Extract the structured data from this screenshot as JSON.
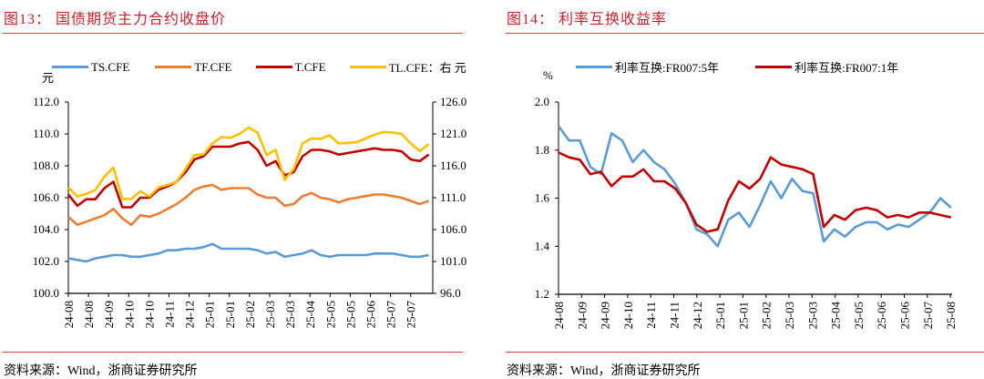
{
  "left": {
    "title": "图13：  国债期货主力合约收盘价",
    "source": "资料来源：Wind，浙商证券研究所",
    "unit_left": "元",
    "legend": [
      "TS.CFE",
      "TF.CFE",
      "T.CFE",
      "TL.CFE：右 元"
    ]
  },
  "right": {
    "title": "图14：  利率互换收益率",
    "source": "资料来源：Wind，浙商证券研究所",
    "unit_left": "%",
    "legend": [
      "利率互换:FR007:5年",
      "利率互换:FR007:1年"
    ]
  },
  "chart_data": [
    {
      "type": "line",
      "title": "国债期货主力合约收盘价",
      "ylabel": "元",
      "y2label": "元",
      "ylim": [
        100,
        112
      ],
      "yticks": [
        "100.0",
        "102.0",
        "104.0",
        "106.0",
        "108.0",
        "110.0",
        "112.0"
      ],
      "y2lim": [
        96,
        126
      ],
      "y2ticks": [
        "96.0",
        "101.0",
        "106.0",
        "111.0",
        "116.0",
        "121.0",
        "126.0"
      ],
      "xlim": [
        "2024-08-01",
        "2025-07-31"
      ],
      "xticks": [
        "24-08",
        "24-08",
        "24-09",
        "24-10",
        "24-10",
        "24-11",
        "24-12",
        "25-01",
        "25-01",
        "25-02",
        "25-03",
        "25-03",
        "25-04",
        "25-05",
        "25-05",
        "25-06",
        "25-07",
        "25-07"
      ],
      "legend_position": "top",
      "grid": false,
      "x": [
        "2024-08-01",
        "2024-08-10",
        "2024-08-19",
        "2024-08-28",
        "2024-09-06",
        "2024-09-15",
        "2024-09-24",
        "2024-10-03",
        "2024-10-12",
        "2024-10-21",
        "2024-10-30",
        "2024-11-08",
        "2024-11-17",
        "2024-11-26",
        "2024-12-05",
        "2024-12-14",
        "2024-12-23",
        "2025-01-01",
        "2025-01-10",
        "2025-01-19",
        "2025-01-28",
        "2025-02-06",
        "2025-02-15",
        "2025-02-24",
        "2025-03-05",
        "2025-03-14",
        "2025-03-23",
        "2025-04-01",
        "2025-04-10",
        "2025-04-19",
        "2025-04-28",
        "2025-05-07",
        "2025-05-16",
        "2025-05-25",
        "2025-06-03",
        "2025-06-12",
        "2025-06-21",
        "2025-06-30",
        "2025-07-09",
        "2025-07-18",
        "2025-07-27"
      ],
      "series": [
        {
          "name": "TS.CFE",
          "axis": "left",
          "color": "#5B9BD5",
          "values": [
            102.2,
            102.1,
            102.0,
            102.2,
            102.3,
            102.4,
            102.4,
            102.3,
            102.3,
            102.4,
            102.5,
            102.7,
            102.7,
            102.8,
            102.8,
            102.9,
            103.1,
            102.8,
            102.8,
            102.8,
            102.8,
            102.7,
            102.5,
            102.6,
            102.3,
            102.4,
            102.5,
            102.7,
            102.4,
            102.3,
            102.4,
            102.4,
            102.4,
            102.4,
            102.5,
            102.5,
            102.5,
            102.4,
            102.3,
            102.3,
            102.4
          ]
        },
        {
          "name": "TF.CFE",
          "axis": "left",
          "color": "#ED7D31",
          "values": [
            104.8,
            104.3,
            104.5,
            104.7,
            104.9,
            105.3,
            104.7,
            104.3,
            104.9,
            104.8,
            105.0,
            105.3,
            105.6,
            106.0,
            106.5,
            106.7,
            106.8,
            106.5,
            106.6,
            106.6,
            106.6,
            106.2,
            106.0,
            106.0,
            105.5,
            105.6,
            106.1,
            106.3,
            106.0,
            105.9,
            105.7,
            105.9,
            106.0,
            106.1,
            106.2,
            106.2,
            106.1,
            106.0,
            105.8,
            105.6,
            105.8
          ]
        },
        {
          "name": "T.CFE",
          "axis": "left",
          "color": "#C00000",
          "values": [
            106.2,
            105.5,
            105.9,
            105.9,
            106.6,
            107.0,
            105.4,
            105.4,
            106.0,
            106.0,
            106.5,
            106.7,
            107.0,
            107.6,
            108.4,
            108.6,
            109.2,
            109.2,
            109.2,
            109.4,
            109.5,
            109.0,
            108.0,
            108.3,
            107.4,
            107.6,
            108.6,
            109.0,
            109.0,
            108.9,
            108.7,
            108.8,
            108.9,
            109.0,
            109.1,
            109.0,
            109.0,
            108.9,
            108.4,
            108.3,
            108.7
          ]
        },
        {
          "name": "TL.CFE",
          "axis": "right",
          "color": "#FFC000",
          "values": [
            112.6,
            111.2,
            111.6,
            112.2,
            114.3,
            115.7,
            110.8,
            110.8,
            112.0,
            111.2,
            112.6,
            113.0,
            113.5,
            115.5,
            117.7,
            117.8,
            119.5,
            120.5,
            120.4,
            121.0,
            122.0,
            121.2,
            117.7,
            118.5,
            113.8,
            115.5,
            119.5,
            120.3,
            120.2,
            120.8,
            119.5,
            119.6,
            119.7,
            120.3,
            120.9,
            121.3,
            121.2,
            121.0,
            119.5,
            118.3,
            119.4
          ]
        }
      ]
    },
    {
      "type": "line",
      "title": "利率互换收益率",
      "ylabel": "%",
      "ylim": [
        1.2,
        2.0
      ],
      "yticks": [
        "1.2",
        "1.4",
        "1.6",
        "1.8",
        "2.0"
      ],
      "xlim": [
        "2024-08-01",
        "2025-08-07"
      ],
      "xticks": [
        "24-08",
        "24-09",
        "24-09",
        "24-10",
        "24-11",
        "24-11",
        "24-12",
        "25-01",
        "25-01",
        "25-02",
        "25-03",
        "25-03",
        "25-04",
        "25-05",
        "25-06",
        "25-06",
        "25-07",
        "25-08"
      ],
      "legend_position": "top",
      "grid": false,
      "x": [
        "2024-08-01",
        "2024-08-11",
        "2024-08-21",
        "2024-08-31",
        "2024-09-10",
        "2024-09-20",
        "2024-09-30",
        "2024-10-10",
        "2024-10-20",
        "2024-10-30",
        "2024-11-09",
        "2024-11-19",
        "2024-11-29",
        "2024-12-09",
        "2024-12-19",
        "2024-12-29",
        "2025-01-08",
        "2025-01-18",
        "2025-01-28",
        "2025-02-07",
        "2025-02-17",
        "2025-02-27",
        "2025-03-09",
        "2025-03-19",
        "2025-03-29",
        "2025-04-08",
        "2025-04-18",
        "2025-04-28",
        "2025-05-08",
        "2025-05-18",
        "2025-05-28",
        "2025-06-07",
        "2025-06-17",
        "2025-06-27",
        "2025-07-07",
        "2025-07-17",
        "2025-07-27",
        "2025-08-06"
      ],
      "series": [
        {
          "name": "利率互换:FR007:5年",
          "color": "#5B9BD5",
          "values": [
            1.9,
            1.84,
            1.84,
            1.73,
            1.7,
            1.87,
            1.84,
            1.75,
            1.8,
            1.75,
            1.72,
            1.66,
            1.58,
            1.47,
            1.45,
            1.4,
            1.51,
            1.54,
            1.48,
            1.57,
            1.67,
            1.6,
            1.68,
            1.63,
            1.62,
            1.42,
            1.47,
            1.44,
            1.48,
            1.5,
            1.5,
            1.47,
            1.49,
            1.48,
            1.51,
            1.54,
            1.6,
            1.56
          ]
        },
        {
          "name": "利率互换:FR007:1年",
          "color": "#C00000",
          "values": [
            1.79,
            1.77,
            1.76,
            1.7,
            1.71,
            1.65,
            1.69,
            1.69,
            1.72,
            1.67,
            1.67,
            1.64,
            1.58,
            1.49,
            1.46,
            1.47,
            1.59,
            1.67,
            1.64,
            1.68,
            1.77,
            1.74,
            1.73,
            1.72,
            1.7,
            1.48,
            1.53,
            1.51,
            1.55,
            1.56,
            1.55,
            1.52,
            1.53,
            1.52,
            1.54,
            1.54,
            1.53,
            1.52
          ]
        }
      ]
    }
  ]
}
